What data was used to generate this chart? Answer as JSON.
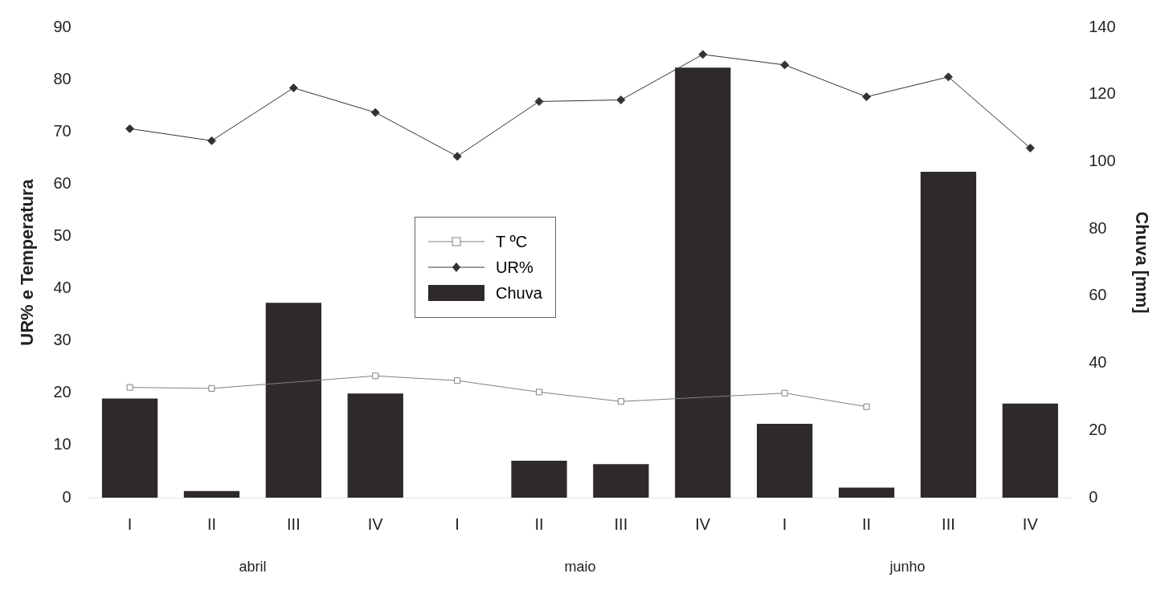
{
  "chart_data": {
    "type": "line",
    "categories": [
      "I",
      "II",
      "III",
      "IV",
      "I",
      "II",
      "III",
      "IV",
      "I",
      "II",
      "III",
      "IV"
    ],
    "annotations": [
      "abril",
      "maio",
      "junho"
    ],
    "ylabel": "UR% e Temperatura",
    "y2label": "Chuva [mm]",
    "ylim": [
      0,
      90
    ],
    "yticks": [
      0,
      10,
      20,
      30,
      40,
      50,
      60,
      70,
      80,
      90
    ],
    "y2lim": [
      0,
      140
    ],
    "y2ticks": [
      0,
      20,
      40,
      60,
      80,
      100,
      120,
      140
    ],
    "grid": false,
    "legend": "center",
    "series": [
      {
        "name": "T ºC",
        "marker": "square",
        "color": "#808080",
        "values": [
          21.1,
          20.9,
          null,
          23.3,
          22.4,
          20.2,
          18.4,
          null,
          20.0,
          17.4,
          null,
          null
        ]
      },
      {
        "name": "UR%",
        "marker": "diamond",
        "color": "#333333",
        "values": [
          70.6,
          68.3,
          78.4,
          73.7,
          65.3,
          75.8,
          76.1,
          84.8,
          82.8,
          76.7,
          80.5,
          66.9
        ]
      },
      {
        "name": "Chuva",
        "type": "bar",
        "axis": "y2",
        "color": "#2e2a2c",
        "values": [
          29.5,
          2,
          58,
          31,
          0,
          11,
          10,
          128,
          22,
          3,
          97,
          28
        ]
      }
    ]
  }
}
